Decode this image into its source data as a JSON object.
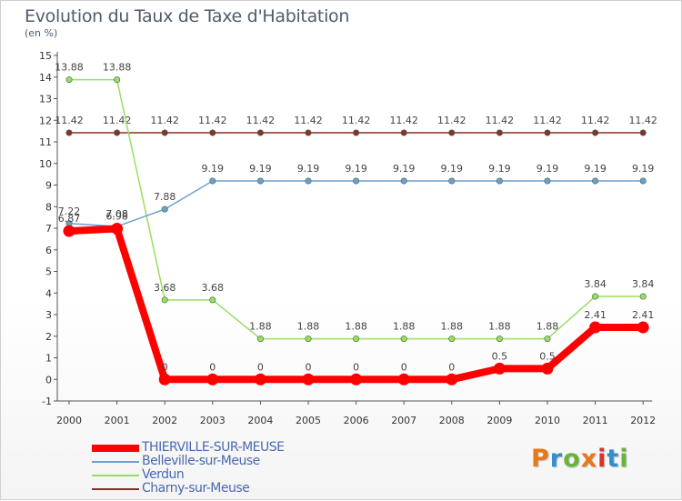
{
  "title": "Evolution du Taux de Taxe d'Habitation",
  "subtitle": "(en %)",
  "logo": {
    "text": "Proxiti",
    "colors": [
      "#e87817",
      "#2f8fd0",
      "#6ab33a",
      "#e87817",
      "#d9322c",
      "#2f8fd0",
      "#6ab33a"
    ]
  },
  "chart_data": {
    "type": "line",
    "title": "Evolution du Taux de Taxe d'Habitation",
    "subtitle": "(en %)",
    "xlabel": "",
    "ylabel": "",
    "categories": [
      "2000",
      "2001",
      "2002",
      "2003",
      "2004",
      "2005",
      "2006",
      "2007",
      "2008",
      "2009",
      "2010",
      "2011",
      "2012"
    ],
    "yticks": [
      "-1",
      "0",
      "1",
      "2",
      "3",
      "4",
      "5",
      "6",
      "7",
      "8",
      "9",
      "10",
      "11",
      "12",
      "13",
      "14",
      "15"
    ],
    "ylim": [
      -1,
      15
    ],
    "grid": false,
    "legend_position": "bottom-left",
    "series": [
      {
        "name": "THIERVILLE-SUR-MEUSE",
        "color": "#ff0000",
        "width": 8,
        "values": [
          6.87,
          6.98,
          0,
          0,
          0,
          0,
          0,
          0,
          0,
          0.5,
          0.5,
          2.41,
          2.41
        ],
        "labels": [
          "6.87",
          "6.98",
          "0",
          "0",
          "0",
          "0",
          "0",
          "0",
          "0",
          "0.5",
          "0.5",
          "2.41",
          "2.41"
        ]
      },
      {
        "name": "Belleville-sur-Meuse",
        "color": "#6e9fd0",
        "width": 1.5,
        "values": [
          7.22,
          7.08,
          7.88,
          9.19,
          9.19,
          9.19,
          9.19,
          9.19,
          9.19,
          9.19,
          9.19,
          9.19,
          9.19
        ],
        "labels": [
          "7.22",
          "7.08",
          "7.88",
          "9.19",
          "9.19",
          "9.19",
          "9.19",
          "9.19",
          "9.19",
          "9.19",
          "9.19",
          "9.19",
          "9.19"
        ]
      },
      {
        "name": "Verdun",
        "color": "#99dd66",
        "width": 1.5,
        "values": [
          13.88,
          13.88,
          3.68,
          3.68,
          1.88,
          1.88,
          1.88,
          1.88,
          1.88,
          1.88,
          1.88,
          3.84,
          3.84
        ],
        "labels": [
          "13.88",
          "13.88",
          "3.68",
          "3.68",
          "1.88",
          "1.88",
          "1.88",
          "1.88",
          "1.88",
          "1.88",
          "1.88",
          "3.84",
          "3.84"
        ]
      },
      {
        "name": "Charny-sur-Meuse",
        "color": "#8b2f2f",
        "width": 1.5,
        "values": [
          11.42,
          11.42,
          11.42,
          11.42,
          11.42,
          11.42,
          11.42,
          11.42,
          11.42,
          11.42,
          11.42,
          11.42,
          11.42
        ],
        "labels": [
          "11.42",
          "11.42",
          "11.42",
          "11.42",
          "11.42",
          "11.42",
          "11.42",
          "11.42",
          "11.42",
          "11.42",
          "11.42",
          "11.42",
          "11.42"
        ]
      }
    ]
  }
}
